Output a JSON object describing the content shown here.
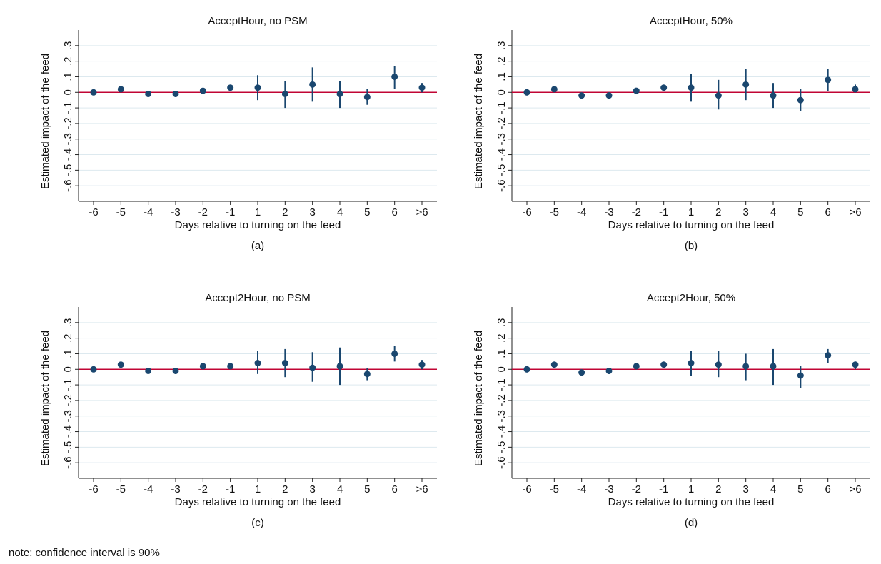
{
  "chart_data": [
    {
      "type": "errorbar",
      "title": "AcceptHour, no PSM",
      "subtitle": "(a)",
      "x_label": "Days relative to turning on the feed",
      "y_label": "Estimated impact of the feed",
      "categories": [
        "-6",
        "-5",
        "-4",
        "-3",
        "-2",
        "-1",
        "1",
        "2",
        "3",
        "4",
        "5",
        "6",
        ">6"
      ],
      "values": [
        0,
        0.02,
        -0.01,
        -0.01,
        0.01,
        0.03,
        0.03,
        -0.01,
        0.05,
        -0.01,
        -0.03,
        0.1,
        0.03
      ],
      "ci_low": [
        0,
        0.01,
        -0.03,
        -0.03,
        0,
        0.02,
        -0.05,
        -0.1,
        -0.06,
        -0.1,
        -0.08,
        0.02,
        0
      ],
      "ci_high": [
        0,
        0.03,
        0.01,
        0.01,
        0.02,
        0.04,
        0.11,
        0.07,
        0.16,
        0.07,
        0.02,
        0.17,
        0.06
      ],
      "color": "#1a476f",
      "hline": 0,
      "hline_color": "#c10534",
      "ylim": [
        -0.7,
        0.4
      ],
      "grid": true,
      "yticks": [
        {
          "value": -0.6,
          "label": "-.6"
        },
        {
          "value": -0.5,
          "label": "-.5"
        },
        {
          "value": -0.4,
          "label": "-.4"
        },
        {
          "value": -0.3,
          "label": "-.3"
        },
        {
          "value": -0.2,
          "label": "-.2"
        },
        {
          "value": -0.1,
          "label": "-.1"
        },
        0,
        {
          "value": 0.1,
          "label": ".1"
        },
        {
          "value": 0.2,
          "label": ".2"
        },
        {
          "value": 0.3,
          "label": ".3"
        }
      ]
    },
    {
      "type": "errorbar",
      "title": "AcceptHour, 50%",
      "subtitle": "(b)",
      "x_label": "Days relative to turning on the feed",
      "y_label": "Estimated impact of the feed",
      "categories": [
        "-6",
        "-5",
        "-4",
        "-3",
        "-2",
        "-1",
        "1",
        "2",
        "3",
        "4",
        "5",
        "6",
        ">6"
      ],
      "values": [
        0,
        0.02,
        -0.02,
        -0.02,
        0.01,
        0.03,
        0.03,
        -0.02,
        0.05,
        -0.02,
        -0.05,
        0.08,
        0.02
      ],
      "ci_low": [
        -0.02,
        0.01,
        -0.03,
        -0.03,
        0,
        0.02,
        -0.06,
        -0.11,
        -0.05,
        -0.1,
        -0.12,
        0.01,
        0
      ],
      "ci_high": [
        0.02,
        0.03,
        -0.01,
        0,
        0.02,
        0.04,
        0.12,
        0.08,
        0.15,
        0.06,
        0.02,
        0.15,
        0.05
      ],
      "color": "#1a476f",
      "hline": 0,
      "hline_color": "#c10534",
      "ylim": [
        -0.7,
        0.4
      ],
      "grid": true,
      "yticks": [
        {
          "value": -0.6,
          "label": "-.6"
        },
        {
          "value": -0.5,
          "label": "-.5"
        },
        {
          "value": -0.4,
          "label": "-.4"
        },
        {
          "value": -0.3,
          "label": "-.3"
        },
        {
          "value": -0.2,
          "label": "-.2"
        },
        {
          "value": -0.1,
          "label": "-.1"
        },
        0,
        {
          "value": 0.1,
          "label": ".1"
        },
        {
          "value": 0.2,
          "label": ".2"
        },
        {
          "value": 0.3,
          "label": ".3"
        }
      ]
    },
    {
      "type": "errorbar",
      "title": "Accept2Hour, no PSM",
      "subtitle": "(c)",
      "x_label": "Days relative to turning on the feed",
      "y_label": "Estimated impact of the feed",
      "categories": [
        "-6",
        "-5",
        "-4",
        "-3",
        "-2",
        "-1",
        "1",
        "2",
        "3",
        "4",
        "5",
        "6",
        ">6"
      ],
      "values": [
        0,
        0.03,
        -0.01,
        -0.01,
        0.02,
        0.02,
        0.04,
        0.04,
        0.01,
        0.02,
        -0.03,
        0.1,
        0.03
      ],
      "ci_low": [
        -0.01,
        0.02,
        -0.02,
        -0.03,
        0.01,
        0.01,
        -0.03,
        -0.05,
        -0.08,
        -0.1,
        -0.07,
        0.05,
        0
      ],
      "ci_high": [
        0.02,
        0.04,
        0,
        0.01,
        0.03,
        0.03,
        0.12,
        0.13,
        0.11,
        0.14,
        0.01,
        0.15,
        0.06
      ],
      "color": "#1a476f",
      "hline": 0,
      "hline_color": "#c10534",
      "ylim": [
        -0.7,
        0.4
      ],
      "grid": true,
      "yticks": [
        {
          "value": -0.6,
          "label": "-.6"
        },
        {
          "value": -0.5,
          "label": "-.5"
        },
        {
          "value": -0.4,
          "label": "-.4"
        },
        {
          "value": -0.3,
          "label": "-.3"
        },
        {
          "value": -0.2,
          "label": "-.2"
        },
        {
          "value": -0.1,
          "label": "-.1"
        },
        0,
        {
          "value": 0.1,
          "label": ".1"
        },
        {
          "value": 0.2,
          "label": ".2"
        },
        {
          "value": 0.3,
          "label": ".3"
        }
      ]
    },
    {
      "type": "errorbar",
      "title": "Accept2Hour, 50%",
      "subtitle": "(d)",
      "x_label": "Days relative to turning on the feed",
      "y_label": "Estimated impact of the feed",
      "categories": [
        "-6",
        "-5",
        "-4",
        "-3",
        "-2",
        "-1",
        "1",
        "2",
        "3",
        "4",
        "5",
        "6",
        ">6"
      ],
      "values": [
        0,
        0.03,
        -0.02,
        -0.01,
        0.02,
        0.03,
        0.04,
        0.03,
        0.02,
        0.02,
        -0.04,
        0.09,
        0.03
      ],
      "ci_low": [
        -0.02,
        0.02,
        -0.03,
        -0.03,
        0,
        0.01,
        -0.04,
        -0.05,
        -0.07,
        -0.1,
        -0.12,
        0.04,
        0
      ],
      "ci_high": [
        0.02,
        0.04,
        -0.01,
        0.01,
        0.03,
        0.04,
        0.12,
        0.12,
        0.1,
        0.13,
        0.02,
        0.13,
        0.05
      ],
      "color": "#1a476f",
      "hline": 0,
      "hline_color": "#c10534",
      "ylim": [
        -0.7,
        0.4
      ],
      "grid": true,
      "yticks": [
        {
          "value": -0.6,
          "label": "-.6"
        },
        {
          "value": -0.5,
          "label": "-.5"
        },
        {
          "value": -0.4,
          "label": "-.4"
        },
        {
          "value": -0.3,
          "label": "-.3"
        },
        {
          "value": -0.2,
          "label": "-.2"
        },
        {
          "value": -0.1,
          "label": "-.1"
        },
        0,
        {
          "value": 0.1,
          "label": ".1"
        },
        {
          "value": 0.2,
          "label": ".2"
        },
        {
          "value": 0.3,
          "label": ".3"
        }
      ]
    }
  ],
  "note": "note: confidence interval is 90%"
}
